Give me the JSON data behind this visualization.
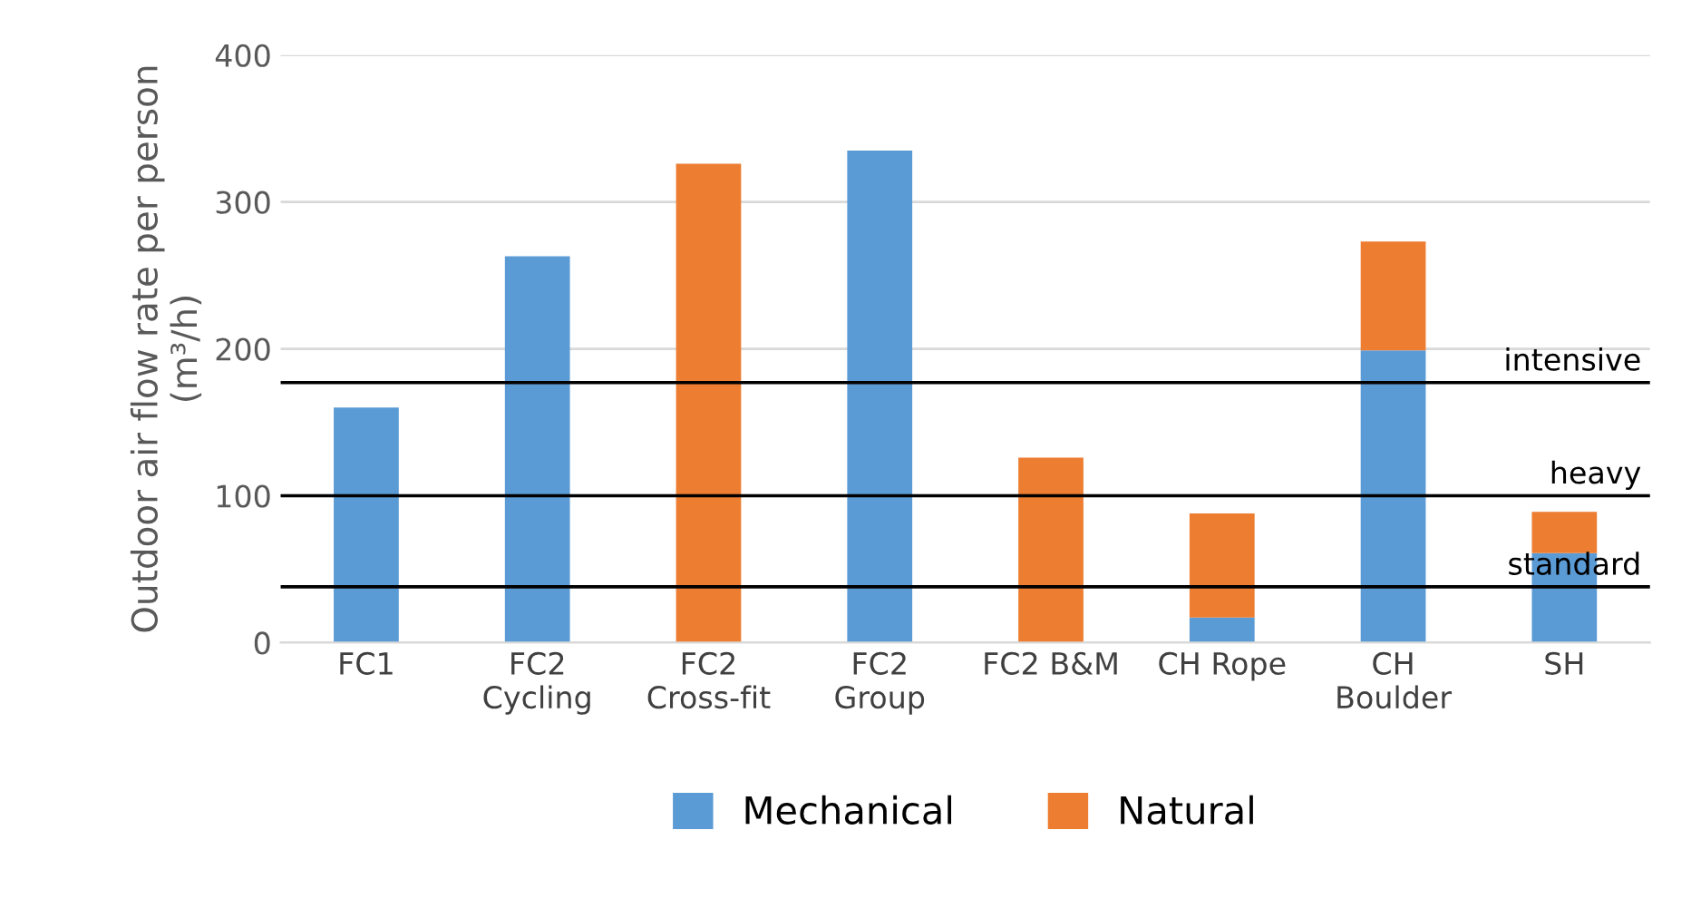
{
  "chart_data": {
    "type": "bar",
    "stacked": true,
    "ylabel": "Outdoor air flow rate per person\n(m³/h)",
    "categories": [
      "FC1",
      "FC2\nCycling",
      "FC2\nCross-fit",
      "FC2\nGroup",
      "FC2 B&M",
      "CH Rope",
      "CH\nBoulder",
      "SH"
    ],
    "series": [
      {
        "name": "Mechanical",
        "color": "#5b9bd5",
        "values": [
          160,
          263,
          0,
          335,
          0,
          17,
          199,
          61
        ]
      },
      {
        "name": "Natural",
        "color": "#ed7d31",
        "values": [
          0,
          0,
          326,
          0,
          126,
          71,
          74,
          28
        ]
      }
    ],
    "ylim": [
      0,
      400
    ],
    "yticks": [
      0,
      100,
      200,
      300,
      400
    ],
    "grid": "y",
    "legend": "bottom",
    "ref_lines": [
      {
        "axis": "y",
        "value": 177,
        "label": "intensive",
        "color": "#000000"
      },
      {
        "axis": "y",
        "value": 100,
        "label": "heavy",
        "color": "#000000"
      },
      {
        "axis": "y",
        "value": 38,
        "label": "standard",
        "color": "#000000"
      }
    ]
  }
}
